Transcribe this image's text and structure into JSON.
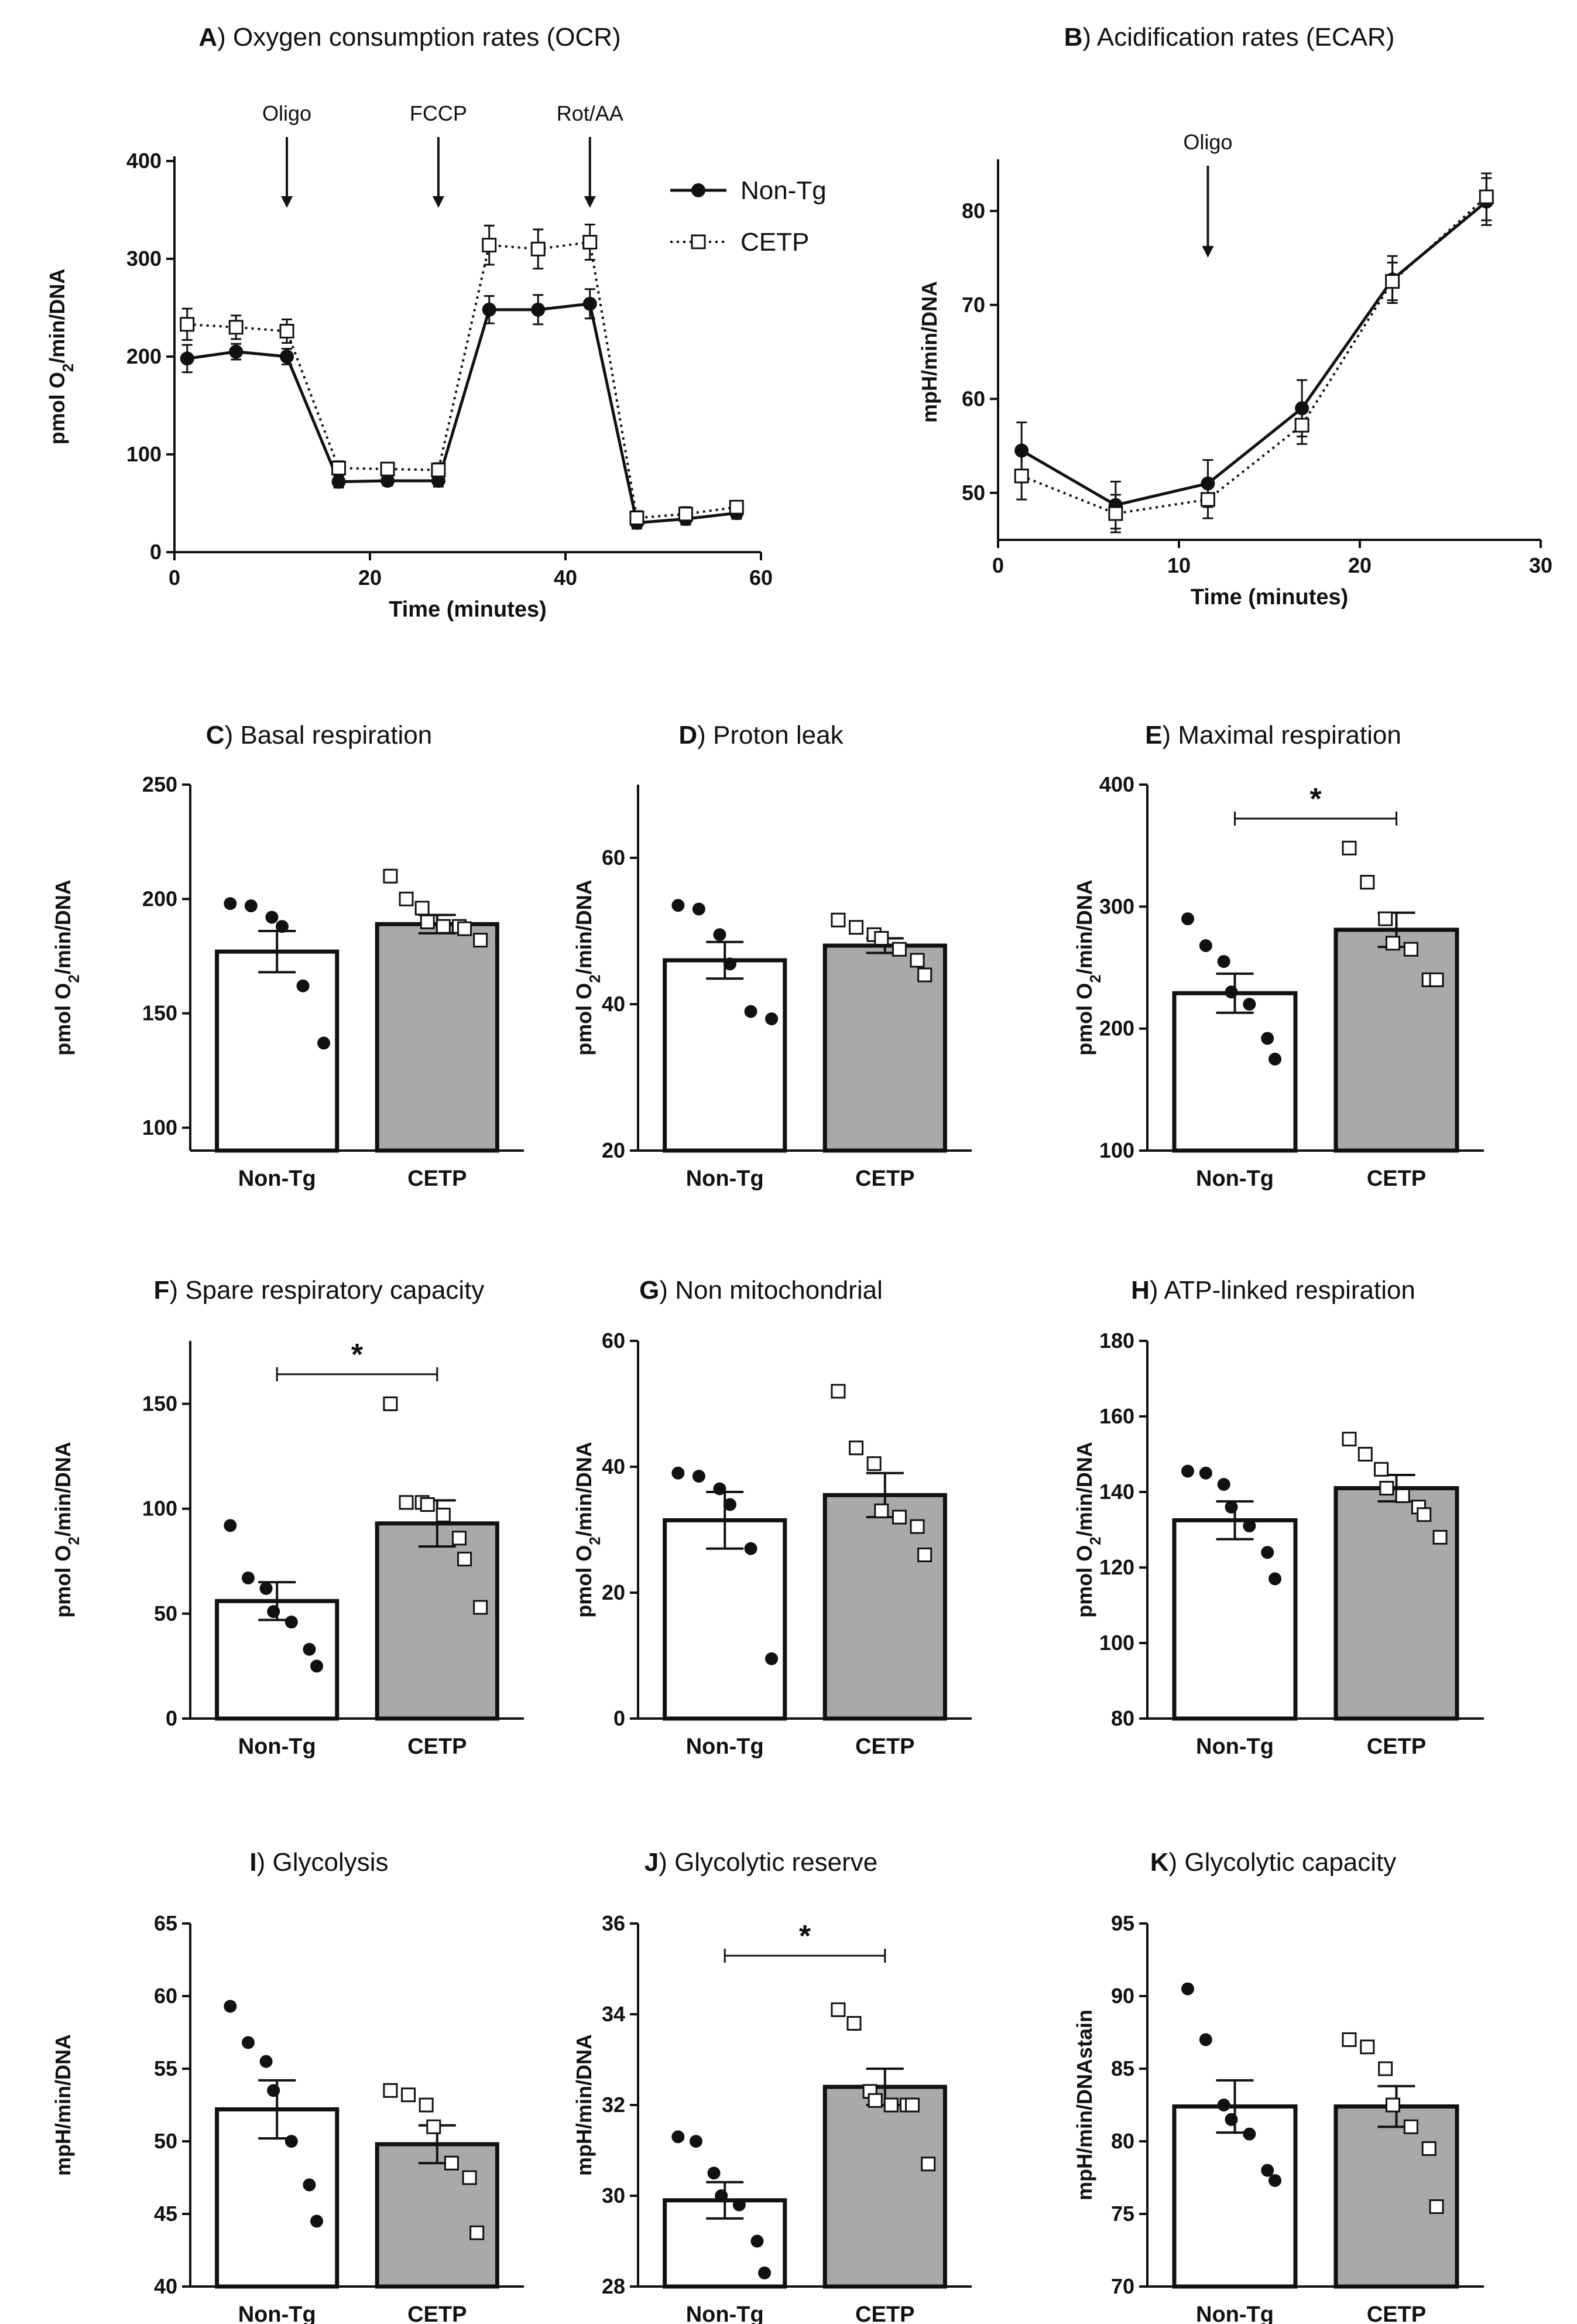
{
  "colors": {
    "ink": "#111111",
    "cetp_bar": "#a9a9a9",
    "nontg_bar": "#ffffff"
  },
  "chart_data": [
    {
      "id": "A",
      "letter": "A",
      "title": "Oxygen consumption rates (OCR)",
      "type": "line",
      "xlabel": "Time (minutes)",
      "ylabel": "pmol O2/min/DNA",
      "ylabel_parts": [
        "pmol O",
        "2",
        "/min/DNA"
      ],
      "xlim": [
        0,
        60
      ],
      "ylim": [
        0,
        400
      ],
      "xticks": [
        0,
        20,
        40,
        60
      ],
      "yticks": [
        0,
        100,
        200,
        300,
        400
      ],
      "annotations": [
        {
          "label": "Oligo",
          "x": 11.5
        },
        {
          "label": "FCCP",
          "x": 27
        },
        {
          "label": "Rot/AA",
          "x": 42.5
        }
      ],
      "legend": {
        "position": "top-right",
        "entries": [
          "Non-Tg",
          "CETP"
        ]
      },
      "series": [
        {
          "name": "Non-Tg",
          "marker": "filled-circle",
          "line": "solid",
          "x": [
            1.3,
            6.3,
            11.5,
            16.8,
            21.8,
            27,
            32.2,
            37.2,
            42.5,
            47.3,
            52.3,
            57.5
          ],
          "values": [
            198,
            205,
            200,
            72,
            73,
            73,
            248,
            248,
            254,
            30,
            34,
            40
          ],
          "errors": [
            14,
            8,
            8,
            6,
            5,
            6,
            14,
            15,
            15,
            6,
            6,
            6
          ]
        },
        {
          "name": "CETP",
          "marker": "open-square",
          "line": "dotted",
          "x": [
            1.3,
            6.3,
            11.5,
            16.8,
            21.8,
            27,
            32.2,
            37.2,
            42.5,
            47.3,
            52.3,
            57.5
          ],
          "values": [
            233,
            230,
            226,
            86,
            85,
            84,
            314,
            310,
            317,
            35,
            39,
            46
          ],
          "errors": [
            16,
            12,
            12,
            7,
            6,
            7,
            20,
            20,
            18,
            7,
            7,
            6
          ]
        }
      ]
    },
    {
      "id": "B",
      "letter": "B",
      "title": "Acidification rates (ECAR)",
      "type": "line",
      "xlabel": "Time (minutes)",
      "ylabel": "mpH/min/DNA",
      "xlim": [
        0,
        30
      ],
      "ylim": [
        45,
        85
      ],
      "xticks": [
        0,
        10,
        20,
        30
      ],
      "yticks": [
        50,
        60,
        70,
        80
      ],
      "annotations": [
        {
          "label": "Oligo",
          "x": 11.6
        }
      ],
      "series": [
        {
          "name": "Non-Tg",
          "marker": "filled-circle",
          "line": "solid",
          "x": [
            1.3,
            6.5,
            11.6,
            16.8,
            21.8,
            27
          ],
          "values": [
            54.5,
            48.7,
            51,
            59,
            72.7,
            81
          ],
          "errors": [
            3,
            2.5,
            2.5,
            3,
            2.5,
            2.5
          ]
        },
        {
          "name": "CETP",
          "marker": "open-square",
          "line": "dotted",
          "x": [
            1.3,
            6.5,
            11.6,
            16.8,
            21.8,
            27
          ],
          "values": [
            51.8,
            47.8,
            49.3,
            57.2,
            72.5,
            81.5
          ],
          "errors": [
            2.5,
            2,
            2,
            2,
            2,
            2.5
          ]
        }
      ]
    },
    {
      "id": "C",
      "letter": "C",
      "title": "Basal respiration",
      "type": "bar",
      "ylabel": "pmol O2/min/DNA",
      "ylabel_parts": [
        "pmol O",
        "2",
        "/min/DNA"
      ],
      "categories": [
        "Non-Tg",
        "CETP"
      ],
      "ylim": [
        90,
        250
      ],
      "yticks": [
        100,
        150,
        200,
        250
      ],
      "values": [
        177,
        189
      ],
      "errors": [
        9,
        4
      ],
      "significant": false,
      "points": [
        [
          198,
          197,
          192,
          188,
          162,
          137
        ],
        [
          210,
          200,
          196,
          190,
          188,
          188,
          187,
          182
        ]
      ]
    },
    {
      "id": "D",
      "letter": "D",
      "title": "Proton leak",
      "type": "bar",
      "ylabel": "pmol O2/min/DNA",
      "ylabel_parts": [
        "pmol O",
        "2",
        "/min/DNA"
      ],
      "categories": [
        "Non-Tg",
        "CETP"
      ],
      "ylim": [
        20,
        70
      ],
      "yticks": [
        20,
        40,
        60
      ],
      "values": [
        46,
        48
      ],
      "errors": [
        2.5,
        1
      ],
      "significant": false,
      "points": [
        [
          53.5,
          53,
          49.5,
          45.5,
          39,
          38
        ],
        [
          51.5,
          50.5,
          49.5,
          49,
          47.5,
          46,
          44
        ]
      ]
    },
    {
      "id": "E",
      "letter": "E",
      "title": "Maximal respiration",
      "type": "bar",
      "ylabel": "pmol O2/min/DNA",
      "ylabel_parts": [
        "pmol O",
        "2",
        "/min/DNA"
      ],
      "categories": [
        "Non-Tg",
        "CETP"
      ],
      "ylim": [
        100,
        400
      ],
      "yticks": [
        100,
        200,
        300,
        400
      ],
      "values": [
        229,
        281
      ],
      "errors": [
        16,
        14
      ],
      "significant": true,
      "sig_label": "*",
      "points": [
        [
          290,
          268,
          255,
          230,
          220,
          192,
          175
        ],
        [
          348,
          320,
          290,
          270,
          265,
          240,
          240
        ]
      ]
    },
    {
      "id": "F",
      "letter": "F",
      "title": "Spare respiratory capacity",
      "type": "bar",
      "ylabel": "pmol O2/min/DNA",
      "ylabel_parts": [
        "pmol O",
        "2",
        "/min/DNA"
      ],
      "categories": [
        "Non-Tg",
        "CETP"
      ],
      "ylim": [
        0,
        180
      ],
      "yticks": [
        0,
        50,
        100,
        150
      ],
      "values": [
        56,
        93
      ],
      "errors": [
        9,
        11
      ],
      "significant": true,
      "sig_label": "*",
      "points": [
        [
          92,
          67,
          62,
          51,
          46,
          33,
          25
        ],
        [
          150,
          103,
          103,
          102,
          97,
          86,
          76,
          53
        ]
      ]
    },
    {
      "id": "G",
      "letter": "G",
      "title": "Non mitochondrial",
      "type": "bar",
      "ylabel": "pmol O2/min/DNA",
      "ylabel_parts": [
        "pmol O",
        "2",
        "/min/DNA"
      ],
      "categories": [
        "Non-Tg",
        "CETP"
      ],
      "ylim": [
        0,
        60
      ],
      "yticks": [
        0,
        20,
        40,
        60
      ],
      "values": [
        31.5,
        35.5
      ],
      "errors": [
        4.5,
        3.5
      ],
      "significant": false,
      "points": [
        [
          39,
          38.5,
          36.5,
          34,
          27,
          9.5
        ],
        [
          52,
          43,
          40.5,
          33,
          32,
          30.5,
          26
        ]
      ]
    },
    {
      "id": "H",
      "letter": "H",
      "title": "ATP-linked respiration",
      "type": "bar",
      "ylabel": "pmol O2/min/DNA",
      "ylabel_parts": [
        "pmol O",
        "2",
        "/min/DNA"
      ],
      "categories": [
        "Non-Tg",
        "CETP"
      ],
      "ylim": [
        80,
        180
      ],
      "yticks": [
        80,
        100,
        120,
        140,
        160,
        180
      ],
      "values": [
        132.5,
        141
      ],
      "errors": [
        5,
        3.5
      ],
      "significant": false,
      "points": [
        [
          145.5,
          145,
          142,
          136,
          131,
          124,
          117
        ],
        [
          154,
          150,
          146,
          141,
          139,
          136,
          134,
          128
        ]
      ]
    },
    {
      "id": "I",
      "letter": "I",
      "title": "Glycolysis",
      "type": "bar",
      "ylabel": "mpH/min/DNA",
      "categories": [
        "Non-Tg",
        "CETP"
      ],
      "ylim": [
        40,
        65
      ],
      "yticks": [
        40,
        45,
        50,
        55,
        60,
        65
      ],
      "values": [
        52.2,
        49.8
      ],
      "errors": [
        2,
        1.3
      ],
      "significant": false,
      "points": [
        [
          59.3,
          56.8,
          55.5,
          53.5,
          50,
          47,
          44.5
        ],
        [
          53.5,
          53.2,
          52.5,
          51,
          48.5,
          47.5,
          43.7
        ]
      ]
    },
    {
      "id": "J",
      "letter": "J",
      "title": "Glycolytic reserve",
      "type": "bar",
      "ylabel": "mpH/min/DNA",
      "categories": [
        "Non-Tg",
        "CETP"
      ],
      "ylim": [
        28,
        36
      ],
      "yticks": [
        28,
        30,
        32,
        34,
        36
      ],
      "values": [
        29.9,
        32.4
      ],
      "errors": [
        0.4,
        0.4
      ],
      "significant": true,
      "sig_label": "*",
      "points": [
        [
          31.3,
          31.2,
          30.5,
          30,
          29.8,
          29,
          28.3
        ],
        [
          34.1,
          33.8,
          32.3,
          32.1,
          32,
          32,
          32,
          30.7
        ]
      ]
    },
    {
      "id": "K",
      "letter": "K",
      "title": "Glycolytic capacity",
      "type": "bar",
      "ylabel": "mpH/min/DNAstain",
      "categories": [
        "Non-Tg",
        "CETP"
      ],
      "ylim": [
        70,
        95
      ],
      "yticks": [
        70,
        75,
        80,
        85,
        90,
        95
      ],
      "values": [
        82.4,
        82.4
      ],
      "errors": [
        1.8,
        1.4
      ],
      "significant": false,
      "points": [
        [
          90.5,
          87,
          82.5,
          81.5,
          80.5,
          78,
          77.3
        ],
        [
          87,
          86.5,
          85,
          82.5,
          81,
          79.5,
          75.5
        ]
      ]
    }
  ]
}
